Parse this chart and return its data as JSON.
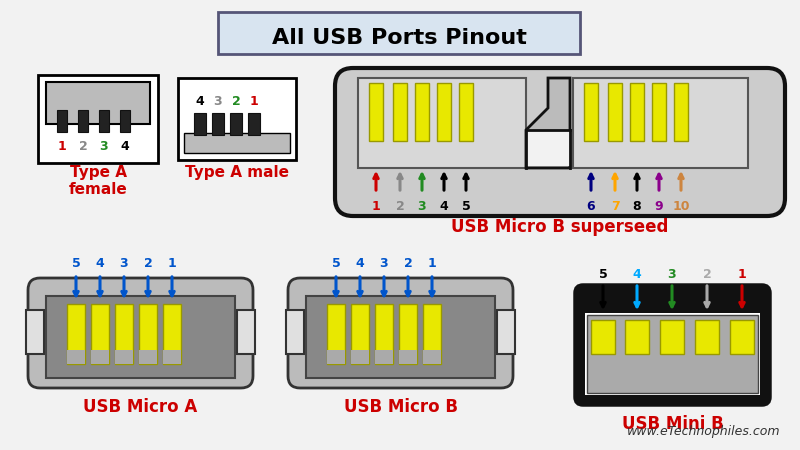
{
  "title": "All USB Ports Pinout",
  "bg_color": "#f2f2f2",
  "label_color": "#cc0000",
  "website": "www.eTechnophiles.com",
  "type_a_female": {
    "label": "Type A\nfemale",
    "pin_labels": [
      "1",
      "2",
      "3",
      "4"
    ],
    "pin_colors": [
      "#cc0000",
      "#888888",
      "#228B22",
      "#000000"
    ]
  },
  "type_a_male": {
    "label": "Type A male",
    "pin_labels": [
      "4",
      "3",
      "2",
      "1"
    ],
    "pin_colors": [
      "#000000",
      "#888888",
      "#228B22",
      "#cc0000"
    ]
  },
  "usb_micro_b_superseed": {
    "label": "USB Micro B superseed",
    "left_pins": [
      {
        "num": "1",
        "color": "#cc0000"
      },
      {
        "num": "2",
        "color": "#888888"
      },
      {
        "num": "3",
        "color": "#228B22"
      },
      {
        "num": "4",
        "color": "#000000"
      },
      {
        "num": "5",
        "color": "#000000"
      }
    ],
    "right_pins": [
      {
        "num": "6",
        "color": "#000080"
      },
      {
        "num": "7",
        "color": "#FFA500"
      },
      {
        "num": "8",
        "color": "#000000"
      },
      {
        "num": "9",
        "color": "#8B008B"
      },
      {
        "num": "10",
        "color": "#CD853F"
      }
    ]
  },
  "usb_micro_a": {
    "label": "USB Micro A",
    "pins": [
      {
        "num": "5",
        "color": "#0055cc"
      },
      {
        "num": "4",
        "color": "#0055cc"
      },
      {
        "num": "3",
        "color": "#0055cc"
      },
      {
        "num": "2",
        "color": "#0055cc"
      },
      {
        "num": "1",
        "color": "#0055cc"
      }
    ]
  },
  "usb_micro_b": {
    "label": "USB Micro B",
    "pins": [
      {
        "num": "5",
        "color": "#0055cc"
      },
      {
        "num": "4",
        "color": "#0055cc"
      },
      {
        "num": "3",
        "color": "#0055cc"
      },
      {
        "num": "2",
        "color": "#0055cc"
      },
      {
        "num": "1",
        "color": "#0055cc"
      }
    ]
  },
  "usb_mini_b": {
    "label": "USB Mini B",
    "pins": [
      {
        "num": "5",
        "color": "#000000"
      },
      {
        "num": "4",
        "color": "#00AAFF"
      },
      {
        "num": "3",
        "color": "#228B22"
      },
      {
        "num": "2",
        "color": "#aaaaaa"
      },
      {
        "num": "1",
        "color": "#cc0000"
      }
    ]
  }
}
